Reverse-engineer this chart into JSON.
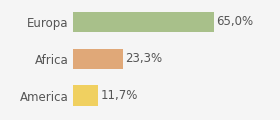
{
  "categories": [
    "Europa",
    "Africa",
    "America"
  ],
  "values": [
    65.0,
    23.3,
    11.7
  ],
  "labels": [
    "65,0%",
    "23,3%",
    "11,7%"
  ],
  "bar_colors": [
    "#a8c08a",
    "#e0a878",
    "#f0d060"
  ],
  "background_color": "#f5f5f5",
  "xlim": [
    0,
    80
  ],
  "bar_height": 0.55,
  "label_fontsize": 8.5,
  "tick_fontsize": 8.5
}
